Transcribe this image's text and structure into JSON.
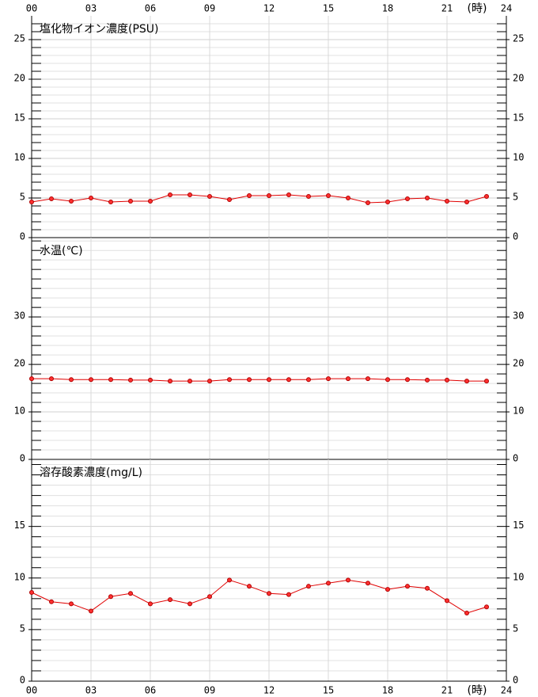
{
  "chart_data": [
    {
      "type": "line",
      "title": "塩化物イオン濃度(PSU)",
      "x_label": "(時)",
      "x_tick_side": "top",
      "x": [
        0,
        1,
        2,
        3,
        4,
        5,
        6,
        7,
        8,
        9,
        10,
        11,
        12,
        13,
        14,
        15,
        16,
        17,
        18,
        19,
        20,
        21,
        22,
        23
      ],
      "series": [
        {
          "color": "#e00000",
          "values": [
            4.5,
            4.9,
            4.6,
            5.0,
            4.5,
            4.6,
            4.6,
            5.4,
            5.4,
            5.2,
            4.8,
            5.3,
            5.3,
            5.4,
            5.2,
            5.3,
            5.0,
            4.4,
            4.5,
            4.9,
            5.0,
            4.6,
            4.5,
            5.2
          ]
        }
      ],
      "xlim": [
        0,
        24
      ],
      "xticks": [
        {
          "value": 0,
          "label": "00"
        },
        {
          "value": 3,
          "label": "03"
        },
        {
          "value": 6,
          "label": "06"
        },
        {
          "value": 9,
          "label": "09"
        },
        {
          "value": 12,
          "label": "12"
        },
        {
          "value": 15,
          "label": "15"
        },
        {
          "value": 18,
          "label": "18"
        },
        {
          "value": 21,
          "label": "21"
        },
        {
          "value": 24,
          "label": "24"
        }
      ],
      "ylim": [
        0,
        28
      ],
      "yticks": [
        0,
        5,
        10,
        15,
        20,
        25
      ],
      "yminor": [
        1,
        2,
        3,
        4,
        6,
        7,
        8,
        9,
        11,
        12,
        13,
        14,
        16,
        17,
        18,
        19,
        21,
        22,
        23,
        24,
        26,
        27
      ],
      "grid": true
    },
    {
      "type": "line",
      "title": "水温(℃)",
      "x": [
        0,
        1,
        2,
        3,
        4,
        5,
        6,
        7,
        8,
        9,
        10,
        11,
        12,
        13,
        14,
        15,
        16,
        17,
        18,
        19,
        20,
        21,
        22,
        23
      ],
      "series": [
        {
          "color": "#e00000",
          "values": [
            17.0,
            17.0,
            16.8,
            16.8,
            16.8,
            16.7,
            16.7,
            16.5,
            16.5,
            16.5,
            16.8,
            16.8,
            16.8,
            16.8,
            16.8,
            17.0,
            17.0,
            17.0,
            16.8,
            16.8,
            16.7,
            16.7,
            16.5,
            16.5
          ]
        }
      ],
      "xlim": [
        0,
        24
      ],
      "xticks": [
        0,
        3,
        6,
        9,
        12,
        15,
        18,
        21,
        24
      ],
      "ylim": [
        0,
        46.7
      ],
      "yticks": [
        0,
        10,
        20,
        30
      ],
      "yminor": [
        2,
        4,
        6,
        8,
        12,
        14,
        16,
        18,
        22,
        24,
        26,
        28,
        32,
        34,
        36,
        38,
        40,
        42,
        44,
        46
      ],
      "grid": true
    },
    {
      "type": "line",
      "title": "溶存酸素濃度(mg/L)",
      "x_label": "(時)",
      "x_tick_side": "bottom",
      "x": [
        0,
        1,
        2,
        3,
        4,
        5,
        6,
        7,
        8,
        9,
        10,
        11,
        12,
        13,
        14,
        15,
        16,
        17,
        18,
        19,
        20,
        21,
        22,
        23
      ],
      "series": [
        {
          "color": "#e00000",
          "values": [
            8.6,
            7.7,
            7.5,
            6.8,
            8.2,
            8.5,
            7.5,
            7.9,
            7.5,
            8.2,
            9.8,
            9.2,
            8.5,
            8.4,
            9.2,
            9.5,
            9.8,
            9.5,
            8.9,
            9.2,
            9.0,
            7.8,
            6.6,
            7.2
          ]
        }
      ],
      "xlim": [
        0,
        24
      ],
      "xticks": [
        {
          "value": 0,
          "label": "00"
        },
        {
          "value": 3,
          "label": "03"
        },
        {
          "value": 6,
          "label": "06"
        },
        {
          "value": 9,
          "label": "09"
        },
        {
          "value": 12,
          "label": "12"
        },
        {
          "value": 15,
          "label": "15"
        },
        {
          "value": 18,
          "label": "18"
        },
        {
          "value": 21,
          "label": "21"
        },
        {
          "value": 24,
          "label": "24"
        }
      ],
      "ylim": [
        0,
        21.5
      ],
      "yticks": [
        0,
        5,
        10,
        15
      ],
      "yminor": [
        1,
        2,
        3,
        4,
        6,
        7,
        8,
        9,
        11,
        12,
        13,
        14,
        16,
        17,
        18,
        19,
        20,
        21
      ],
      "grid": true
    }
  ]
}
